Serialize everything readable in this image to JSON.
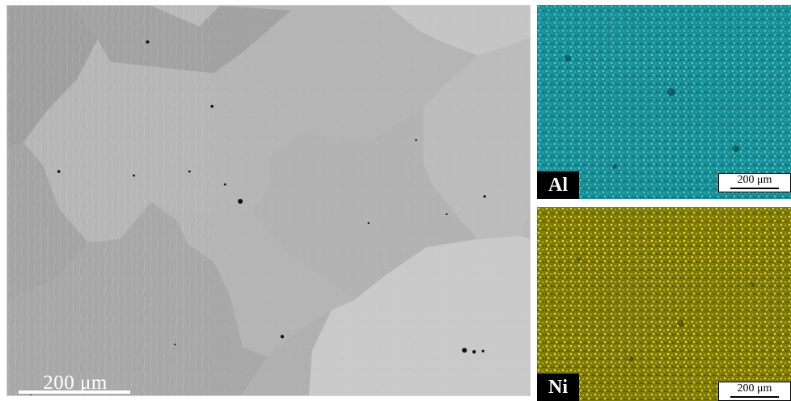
{
  "main_image": {
    "scale_label": "200 μm"
  },
  "maps": {
    "al": {
      "label": "Al",
      "scale_label": "200 μm",
      "color": "#35c4c9"
    },
    "ni": {
      "label": "Ni",
      "scale_label": "200 μm",
      "color": "#d8d51a"
    }
  }
}
